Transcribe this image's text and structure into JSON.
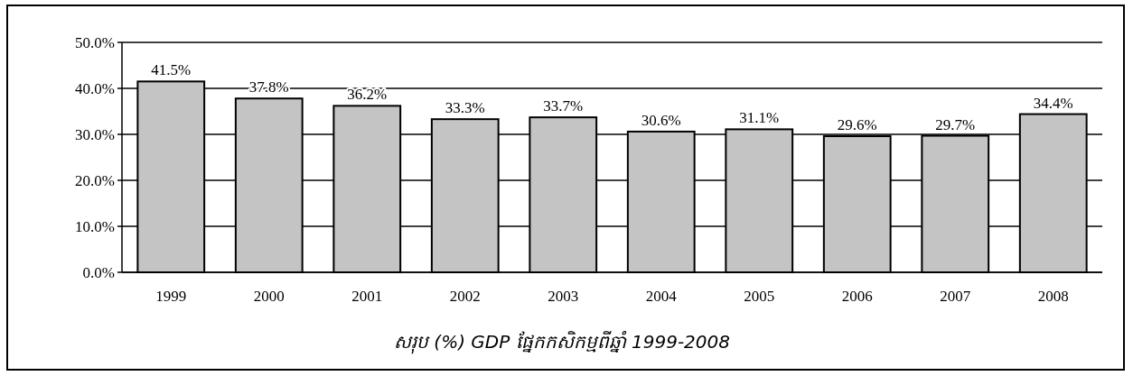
{
  "chart_data": {
    "type": "bar",
    "title": "សរុប (%) GDP ផ្នែកកសិកម្មពីឆ្នាំ 1999-2008",
    "categories": [
      "1999",
      "2000",
      "2001",
      "2002",
      "2003",
      "2004",
      "2005",
      "2006",
      "2007",
      "2008"
    ],
    "values": [
      41.5,
      37.8,
      36.2,
      33.3,
      33.7,
      30.6,
      31.1,
      29.6,
      29.7,
      34.4
    ],
    "value_labels": [
      "41.5%",
      "37.8%",
      "36.2%",
      "33.3%",
      "33.7%",
      "30.6%",
      "31.1%",
      "29.6%",
      "29.7%",
      "34.4%"
    ],
    "color": "#c4c4c4",
    "ylim": [
      0,
      50
    ],
    "yticks": [
      {
        "value": 0,
        "label": "0.0%"
      },
      {
        "value": 10,
        "label": "10.0%"
      },
      {
        "value": 20,
        "label": "20.0%"
      },
      {
        "value": 30,
        "label": "30.0%"
      },
      {
        "value": 40,
        "label": "40.0%"
      },
      {
        "value": 50,
        "label": "50.0%"
      }
    ],
    "grid": "y"
  }
}
